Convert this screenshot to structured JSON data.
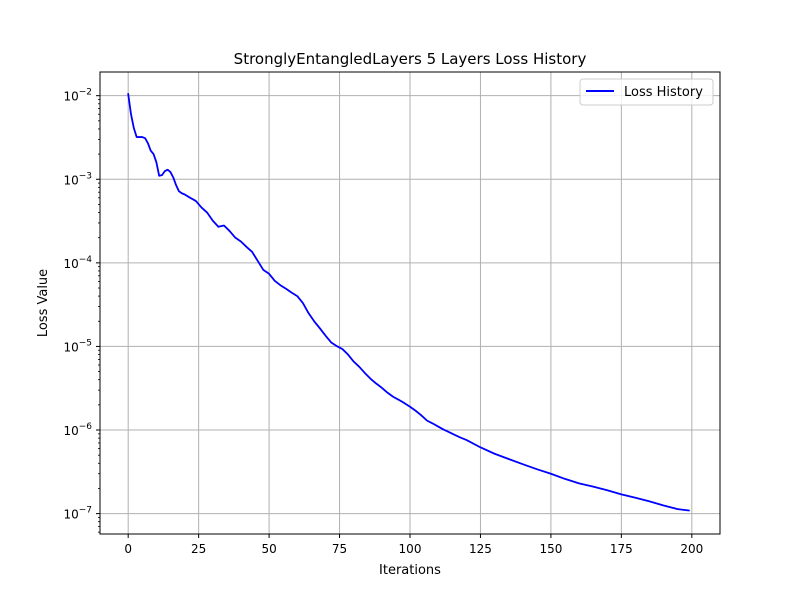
{
  "chart_data": {
    "type": "line",
    "title": "StronglyEntangledLayers 5 Layers Loss History",
    "xlabel": "Iterations",
    "ylabel": "Loss Value",
    "xlim": [
      -10,
      210
    ],
    "ylim": [
      5.7e-08,
      0.0192
    ],
    "yscale": "log",
    "grid": true,
    "legend_position": "upper-right",
    "x_ticks": [
      {
        "value": 0,
        "label": "0"
      },
      {
        "value": 25,
        "label": "25"
      },
      {
        "value": 50,
        "label": "50"
      },
      {
        "value": 75,
        "label": "75"
      },
      {
        "value": 100,
        "label": "100"
      },
      {
        "value": 125,
        "label": "125"
      },
      {
        "value": 150,
        "label": "150"
      },
      {
        "value": 175,
        "label": "175"
      },
      {
        "value": 200,
        "label": "200"
      }
    ],
    "y_ticks": [
      {
        "value": 0.01,
        "base": "10",
        "exp": "−2"
      },
      {
        "value": 0.001,
        "base": "10",
        "exp": "−3"
      },
      {
        "value": 0.0001,
        "base": "10",
        "exp": "−4"
      },
      {
        "value": 1e-05,
        "base": "10",
        "exp": "−5"
      },
      {
        "value": 1e-06,
        "base": "10",
        "exp": "−6"
      },
      {
        "value": 1e-07,
        "base": "10",
        "exp": "−7"
      }
    ],
    "series": [
      {
        "name": "Loss History",
        "color": "#0000ff",
        "x": [
          0,
          1,
          2,
          3,
          4,
          5,
          6,
          7,
          8,
          9,
          10,
          11,
          12,
          13,
          14,
          15,
          16,
          17,
          18,
          19,
          20,
          22,
          24,
          26,
          28,
          30,
          32,
          34,
          36,
          38,
          40,
          42,
          44,
          46,
          48,
          50,
          52,
          54,
          56,
          58,
          60,
          62,
          64,
          66,
          68,
          70,
          72,
          74,
          76,
          78,
          80,
          82,
          84,
          86,
          88,
          90,
          92,
          94,
          96,
          98,
          100,
          102,
          104,
          106,
          108,
          110,
          112,
          114,
          116,
          118,
          120,
          125,
          130,
          135,
          140,
          145,
          150,
          155,
          160,
          165,
          170,
          175,
          180,
          185,
          190,
          195,
          199
        ],
        "y": [
          0.0105,
          0.006,
          0.0041,
          0.0032,
          0.0032,
          0.0032,
          0.0031,
          0.0027,
          0.0022,
          0.002,
          0.0016,
          0.0011,
          0.00112,
          0.00125,
          0.0013,
          0.00122,
          0.00105,
          0.00085,
          0.00072,
          0.00068,
          0.00066,
          0.0006,
          0.00055,
          0.00046,
          0.0004,
          0.00032,
          0.00027,
          0.00028,
          0.00024,
          0.0002,
          0.00018,
          0.000155,
          0.000135,
          0.000105,
          8.2e-05,
          7.4e-05,
          6.1e-05,
          5.4e-05,
          4.9e-05,
          4.4e-05,
          4e-05,
          3.3e-05,
          2.5e-05,
          2e-05,
          1.65e-05,
          1.35e-05,
          1.12e-05,
          1.01e-05,
          9.3e-06,
          8e-06,
          6.6e-06,
          5.7e-06,
          4.8e-06,
          4.1e-06,
          3.6e-06,
          3.2e-06,
          2.8e-06,
          2.5e-06,
          2.3e-06,
          2.1e-06,
          1.9e-06,
          1.7e-06,
          1.5e-06,
          1.3e-06,
          1.2e-06,
          1.1e-06,
          1.01e-06,
          9.4e-07,
          8.7e-07,
          8.1e-07,
          7.6e-07,
          6.2e-07,
          5.2e-07,
          4.5e-07,
          3.9e-07,
          3.4e-07,
          3e-07,
          2.6e-07,
          2.3e-07,
          2.1e-07,
          1.9e-07,
          1.7e-07,
          1.55e-07,
          1.4e-07,
          1.25e-07,
          1.13e-07,
          1.09e-07
        ]
      }
    ]
  }
}
